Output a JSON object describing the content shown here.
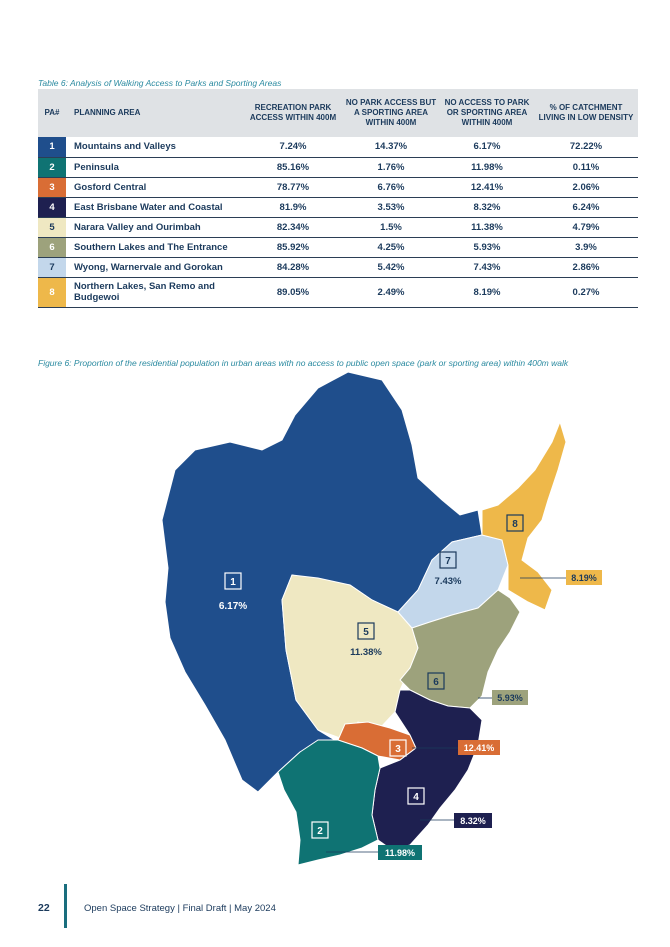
{
  "table": {
    "caption": "Table 6: Analysis of Walking Access to Parks and Sporting Areas",
    "headers": {
      "pa": "PA#",
      "area": "PLANNING AREA",
      "rec": "RECREATION PARK ACCESS WITHIN 400M",
      "sport": "NO PARK ACCESS BUT A SPORTING AREA WITHIN 400M",
      "none": "NO ACCESS TO PARK OR SPORTING AREA WITHIN 400M",
      "low": "% OF CATCHMENT LIVING IN LOW DENSITY"
    },
    "rows": [
      {
        "pa": "1",
        "area": "Mountains and Valleys",
        "rec": "7.24%",
        "sport": "14.37%",
        "none": "6.17%",
        "low": "72.22%",
        "color": "#1f4e8c"
      },
      {
        "pa": "2",
        "area": "Peninsula",
        "rec": "85.16%",
        "sport": "1.76%",
        "none": "11.98%",
        "low": "0.11%",
        "color": "#0f7373"
      },
      {
        "pa": "3",
        "area": "Gosford Central",
        "rec": "78.77%",
        "sport": "6.76%",
        "none": "12.41%",
        "low": "2.06%",
        "color": "#d96d35"
      },
      {
        "pa": "4",
        "area": "East Brisbane Water and Coastal",
        "rec": "81.9%",
        "sport": "3.53%",
        "none": "8.32%",
        "low": "6.24%",
        "color": "#1e2050"
      },
      {
        "pa": "5",
        "area": "Narara Valley and Ourimbah",
        "rec": "82.34%",
        "sport": "1.5%",
        "none": "11.38%",
        "low": "4.79%",
        "color": "#efe8c2"
      },
      {
        "pa": "6",
        "area": "Southern Lakes and The Entrance",
        "rec": "85.92%",
        "sport": "4.25%",
        "none": "5.93%",
        "low": "3.9%",
        "color": "#9da27c"
      },
      {
        "pa": "7",
        "area": "Wyong, Warnervale and Gorokan",
        "rec": "84.28%",
        "sport": "5.42%",
        "none": "7.43%",
        "low": "2.86%",
        "color": "#c3d7eb"
      },
      {
        "pa": "8",
        "area": "Northern Lakes, San Remo and Budgewoi",
        "rec": "89.05%",
        "sport": "2.49%",
        "none": "8.19%",
        "low": "0.27%",
        "color": "#eeb84a"
      }
    ]
  },
  "figure": {
    "caption": "Figure 6: Proportion of the residential population in urban areas with no access to public open space (park or sporting area) within 400m walk",
    "regions": [
      {
        "num": "1",
        "value": "6.17%",
        "color": "#1f4e8c"
      },
      {
        "num": "2",
        "value": "11.98%",
        "color": "#0f7373"
      },
      {
        "num": "3",
        "value": "12.41%",
        "color": "#d96d35"
      },
      {
        "num": "4",
        "value": "8.32%",
        "color": "#1e2050"
      },
      {
        "num": "5",
        "value": "11.38%",
        "color": "#efe8c2"
      },
      {
        "num": "6",
        "value": "5.93%",
        "color": "#9da27c"
      },
      {
        "num": "7",
        "value": "7.43%",
        "color": "#c3d7eb"
      },
      {
        "num": "8",
        "value": "8.19%",
        "color": "#eeb84a"
      }
    ]
  },
  "footer": {
    "page_number": "22",
    "text": "Open Space Strategy | Final Draft | May 2024"
  }
}
